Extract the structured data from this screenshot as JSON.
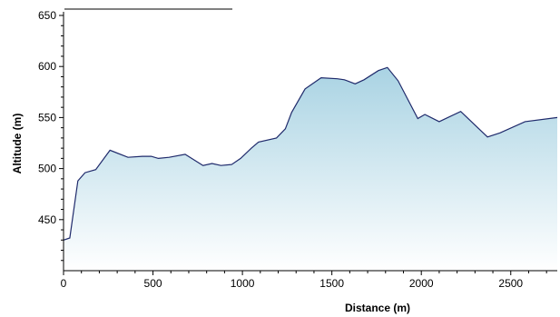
{
  "chart_data": {
    "type": "area",
    "title": "",
    "xlabel": "Distance (m)",
    "ylabel": "Altitude (m)",
    "xlim": [
      0,
      2760
    ],
    "ylim": [
      400,
      650
    ],
    "x_ticks": [
      0,
      500,
      1000,
      1500,
      2000,
      2500
    ],
    "x_tick_labels": [
      "0",
      "500",
      "1000",
      "1500",
      "2000",
      "2500"
    ],
    "y_ticks": [
      450,
      500,
      550,
      600,
      650
    ],
    "y_tick_labels": [
      "450",
      "500",
      "550",
      "600",
      "650"
    ],
    "grid": false,
    "legend": "none",
    "colors": {
      "line": "#1f2a6b",
      "fill_top": "#a9d3e3",
      "fill_bottom": "#ffffff",
      "axis": "#000000"
    },
    "series": [
      {
        "x": [
          0,
          35,
          80,
          120,
          180,
          260,
          360,
          440,
          490,
          530,
          590,
          680,
          780,
          830,
          880,
          940,
          990,
          1050,
          1090,
          1190,
          1240,
          1275,
          1350,
          1440,
          1530,
          1570,
          1630,
          1680,
          1760,
          1810,
          1870,
          1980,
          2020,
          2100,
          2220,
          2370,
          2440,
          2580,
          2760
        ],
        "y": [
          430,
          432,
          488,
          496,
          499,
          518,
          511,
          512,
          512,
          510,
          511,
          514,
          503,
          505,
          503,
          504,
          510,
          520,
          526,
          530,
          539,
          555,
          578,
          589,
          588,
          587,
          583,
          587,
          596,
          599,
          586,
          549,
          553,
          546,
          556,
          531,
          535,
          546,
          550
        ]
      }
    ]
  }
}
